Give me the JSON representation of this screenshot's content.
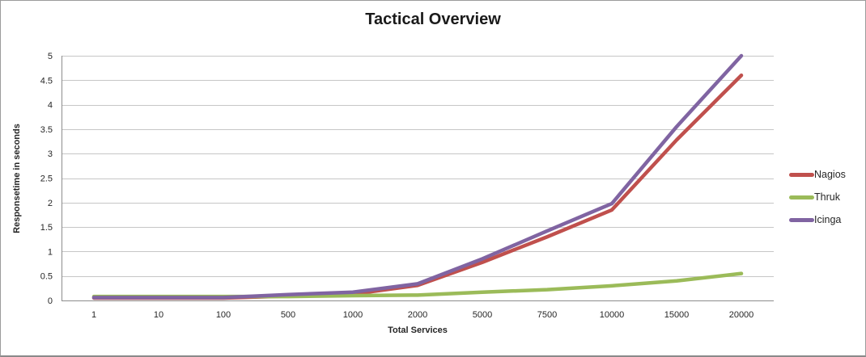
{
  "chart_data": {
    "type": "line",
    "title": "Tactical Overview",
    "xlabel": "Total Services",
    "ylabel": "Responsetime in seconds",
    "categories": [
      "1",
      "10",
      "100",
      "500",
      "1000",
      "2000",
      "5000",
      "7500",
      "10000",
      "15000",
      "20000"
    ],
    "yticks": [
      0,
      0.5,
      1,
      1.5,
      2,
      2.5,
      3,
      3.5,
      4,
      4.5,
      5
    ],
    "ylim": [
      0,
      5
    ],
    "grid": "horizontal",
    "legend_position": "right",
    "series": [
      {
        "name": "Nagios",
        "color": "#C0504D",
        "values": [
          0.05,
          0.05,
          0.05,
          0.09,
          0.13,
          0.31,
          0.78,
          1.3,
          1.85,
          3.28,
          4.6
        ]
      },
      {
        "name": "Thruk",
        "color": "#9BBB59",
        "values": [
          0.08,
          0.08,
          0.08,
          0.08,
          0.1,
          0.11,
          0.17,
          0.22,
          0.3,
          0.4,
          0.55
        ]
      },
      {
        "name": "Icinga",
        "color": "#8064A2",
        "values": [
          0.06,
          0.06,
          0.06,
          0.12,
          0.17,
          0.34,
          0.85,
          1.42,
          1.98,
          3.55,
          5.0
        ]
      }
    ],
    "grid_color": "#c6c6c6",
    "axis_color": "#8c8c8c",
    "text_color": "#262626"
  }
}
